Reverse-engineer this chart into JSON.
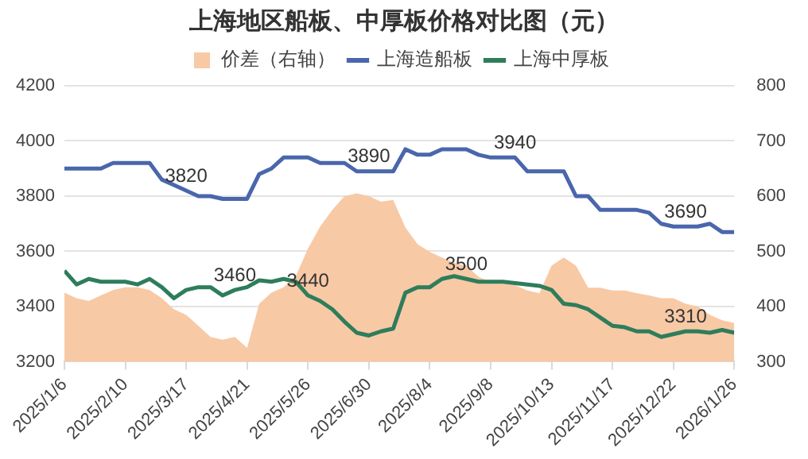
{
  "chart_data": {
    "type": "line",
    "title": "上海地区船板、中厚板价格对比图（元）",
    "x": [
      "2025-01-06",
      "2025-01-13",
      "2025-01-20",
      "2025-01-27",
      "2025-02-03",
      "2025-02-10",
      "2025-02-17",
      "2025-02-24",
      "2025-03-03",
      "2025-03-10",
      "2025-03-17",
      "2025-03-24",
      "2025-03-31",
      "2025-04-07",
      "2025-04-14",
      "2025-04-21",
      "2025-04-28",
      "2025-05-05",
      "2025-05-12",
      "2025-05-19",
      "2025-05-26",
      "2025-06-02",
      "2025-06-09",
      "2025-06-16",
      "2025-06-23",
      "2025-06-30",
      "2025-07-07",
      "2025-07-14",
      "2025-07-21",
      "2025-07-28",
      "2025-08-04",
      "2025-08-11",
      "2025-08-18",
      "2025-08-25",
      "2025-09-01",
      "2025-09-08",
      "2025-09-15",
      "2025-09-22",
      "2025-09-29",
      "2025-10-06",
      "2025-10-13",
      "2025-10-20",
      "2025-10-27",
      "2025-11-03",
      "2025-11-10",
      "2025-11-17",
      "2025-11-24",
      "2025-12-01",
      "2025-12-08",
      "2025-12-15",
      "2025-12-22",
      "2025-12-29",
      "2026-01-05",
      "2026-01-12",
      "2026-01-19",
      "2026-01-26"
    ],
    "series": [
      {
        "name": "价差（右轴）",
        "type": "area",
        "axis": "y2",
        "color": "#f8c9a5",
        "values": [
          425,
          415,
          410,
          420,
          430,
          435,
          435,
          430,
          415,
          395,
          385,
          365,
          345,
          340,
          345,
          325,
          405,
          425,
          435,
          455,
          505,
          545,
          575,
          600,
          605,
          600,
          590,
          593,
          543,
          513,
          499,
          489,
          479,
          474,
          454,
          444,
          442,
          439,
          429,
          424,
          474,
          489,
          474,
          434,
          434,
          429,
          429,
          424,
          420,
          415,
          415,
          405,
          400,
          385,
          375,
          370
        ]
      },
      {
        "name": "上海造船板",
        "type": "line",
        "color": "#4a66ac",
        "values": [
          3900,
          3900,
          3900,
          3900,
          3920,
          3920,
          3920,
          3920,
          3860,
          3840,
          3820,
          3800,
          3800,
          3790,
          3790,
          3790,
          3880,
          3900,
          3940,
          3940,
          3940,
          3920,
          3920,
          3920,
          3890,
          3890,
          3890,
          3890,
          3970,
          3950,
          3950,
          3970,
          3970,
          3970,
          3950,
          3940,
          3940,
          3940,
          3890,
          3890,
          3890,
          3890,
          3800,
          3800,
          3750,
          3750,
          3750,
          3750,
          3740,
          3700,
          3690,
          3690,
          3690,
          3700,
          3670,
          3670
        ]
      },
      {
        "name": "上海中厚板",
        "type": "line",
        "color": "#2e7d5b",
        "values": [
          3530,
          3480,
          3500,
          3490,
          3490,
          3490,
          3480,
          3500,
          3470,
          3430,
          3460,
          3470,
          3470,
          3440,
          3460,
          3470,
          3495,
          3490,
          3500,
          3490,
          3440,
          3420,
          3390,
          3345,
          3305,
          3295,
          3310,
          3320,
          3450,
          3470,
          3470,
          3500,
          3510,
          3500,
          3490,
          3490,
          3490,
          3485,
          3480,
          3475,
          3460,
          3410,
          3405,
          3390,
          3360,
          3330,
          3325,
          3310,
          3310,
          3290,
          3300,
          3310,
          3310,
          3305,
          3315,
          3305
        ]
      }
    ],
    "xlim": [
      "2025-01-06",
      "2026-01-26"
    ],
    "xticks": [
      {
        "value": "2025-01-06",
        "label": "2025/1/6"
      },
      {
        "value": "2025-02-10",
        "label": "2025/2/10"
      },
      {
        "value": "2025-03-17",
        "label": "2025/3/17"
      },
      {
        "value": "2025-04-21",
        "label": "2025/4/21"
      },
      {
        "value": "2025-05-26",
        "label": "2025/5/26"
      },
      {
        "value": "2025-06-30",
        "label": "2025/6/30"
      },
      {
        "value": "2025-08-04",
        "label": "2025/8/4"
      },
      {
        "value": "2025-09-08",
        "label": "2025/9/8"
      },
      {
        "value": "2025-10-13",
        "label": "2025/10/13"
      },
      {
        "value": "2025-11-17",
        "label": "2025/11/17"
      },
      {
        "value": "2025-12-22",
        "label": "2025/12/22"
      },
      {
        "value": "2026-01-26",
        "label": "2026/1/26"
      }
    ],
    "ylim": [
      3200,
      4200
    ],
    "yticks": [
      3200,
      3400,
      3600,
      3800,
      4000,
      4200
    ],
    "y2lim": [
      300,
      800
    ],
    "y2ticks": [
      300,
      400,
      500,
      600,
      700,
      800
    ],
    "annotations": [
      {
        "text": "3820",
        "x": "2025-03-17",
        "y": 3820
      },
      {
        "text": "3460",
        "x": "2025-04-14",
        "y": 3460
      },
      {
        "text": "3440",
        "x": "2025-05-26",
        "y": 3440
      },
      {
        "text": "3890",
        "x": "2025-06-30",
        "y": 3890
      },
      {
        "text": "3500",
        "x": "2025-08-25",
        "y": 3500
      },
      {
        "text": "3940",
        "x": "2025-09-22",
        "y": 3940
      },
      {
        "text": "3690",
        "x": "2025-12-29",
        "y": 3690
      },
      {
        "text": "3310",
        "x": "2025-12-29",
        "y": 3310
      }
    ],
    "grid": "y",
    "legend": "top",
    "marker": "none",
    "line_style": "solid"
  }
}
